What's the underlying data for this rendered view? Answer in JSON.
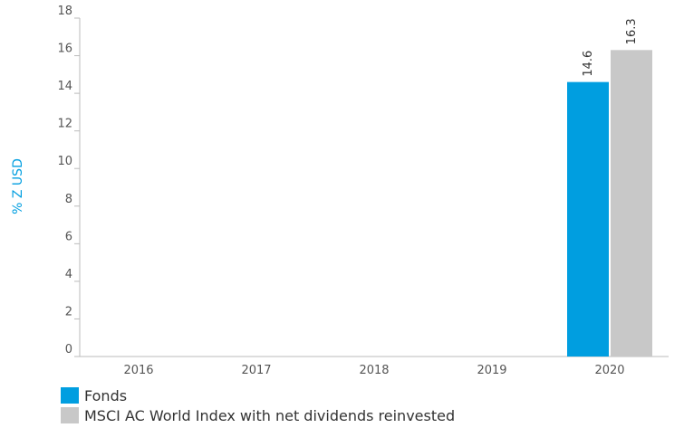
{
  "chart_data": {
    "type": "bar",
    "categories": [
      "2016",
      "2017",
      "2018",
      "2019",
      "2020"
    ],
    "series": [
      {
        "name": "Fonds",
        "color": "#009ee0",
        "values": [
          null,
          null,
          null,
          null,
          14.6
        ]
      },
      {
        "name": "MSCI AC World Index with net dividends reinvested",
        "color": "#c8c8c8",
        "values": [
          null,
          null,
          null,
          null,
          16.3
        ]
      }
    ],
    "data_labels": [
      "14.6",
      "16.3"
    ],
    "ylabel": "% Z USD",
    "ylabel_color": "#009ee0",
    "ylim": [
      0,
      18
    ],
    "yticks": [
      0,
      2,
      4,
      6,
      8,
      10,
      12,
      14,
      16,
      18
    ],
    "grid": false,
    "legend_position": "bottom-left"
  }
}
